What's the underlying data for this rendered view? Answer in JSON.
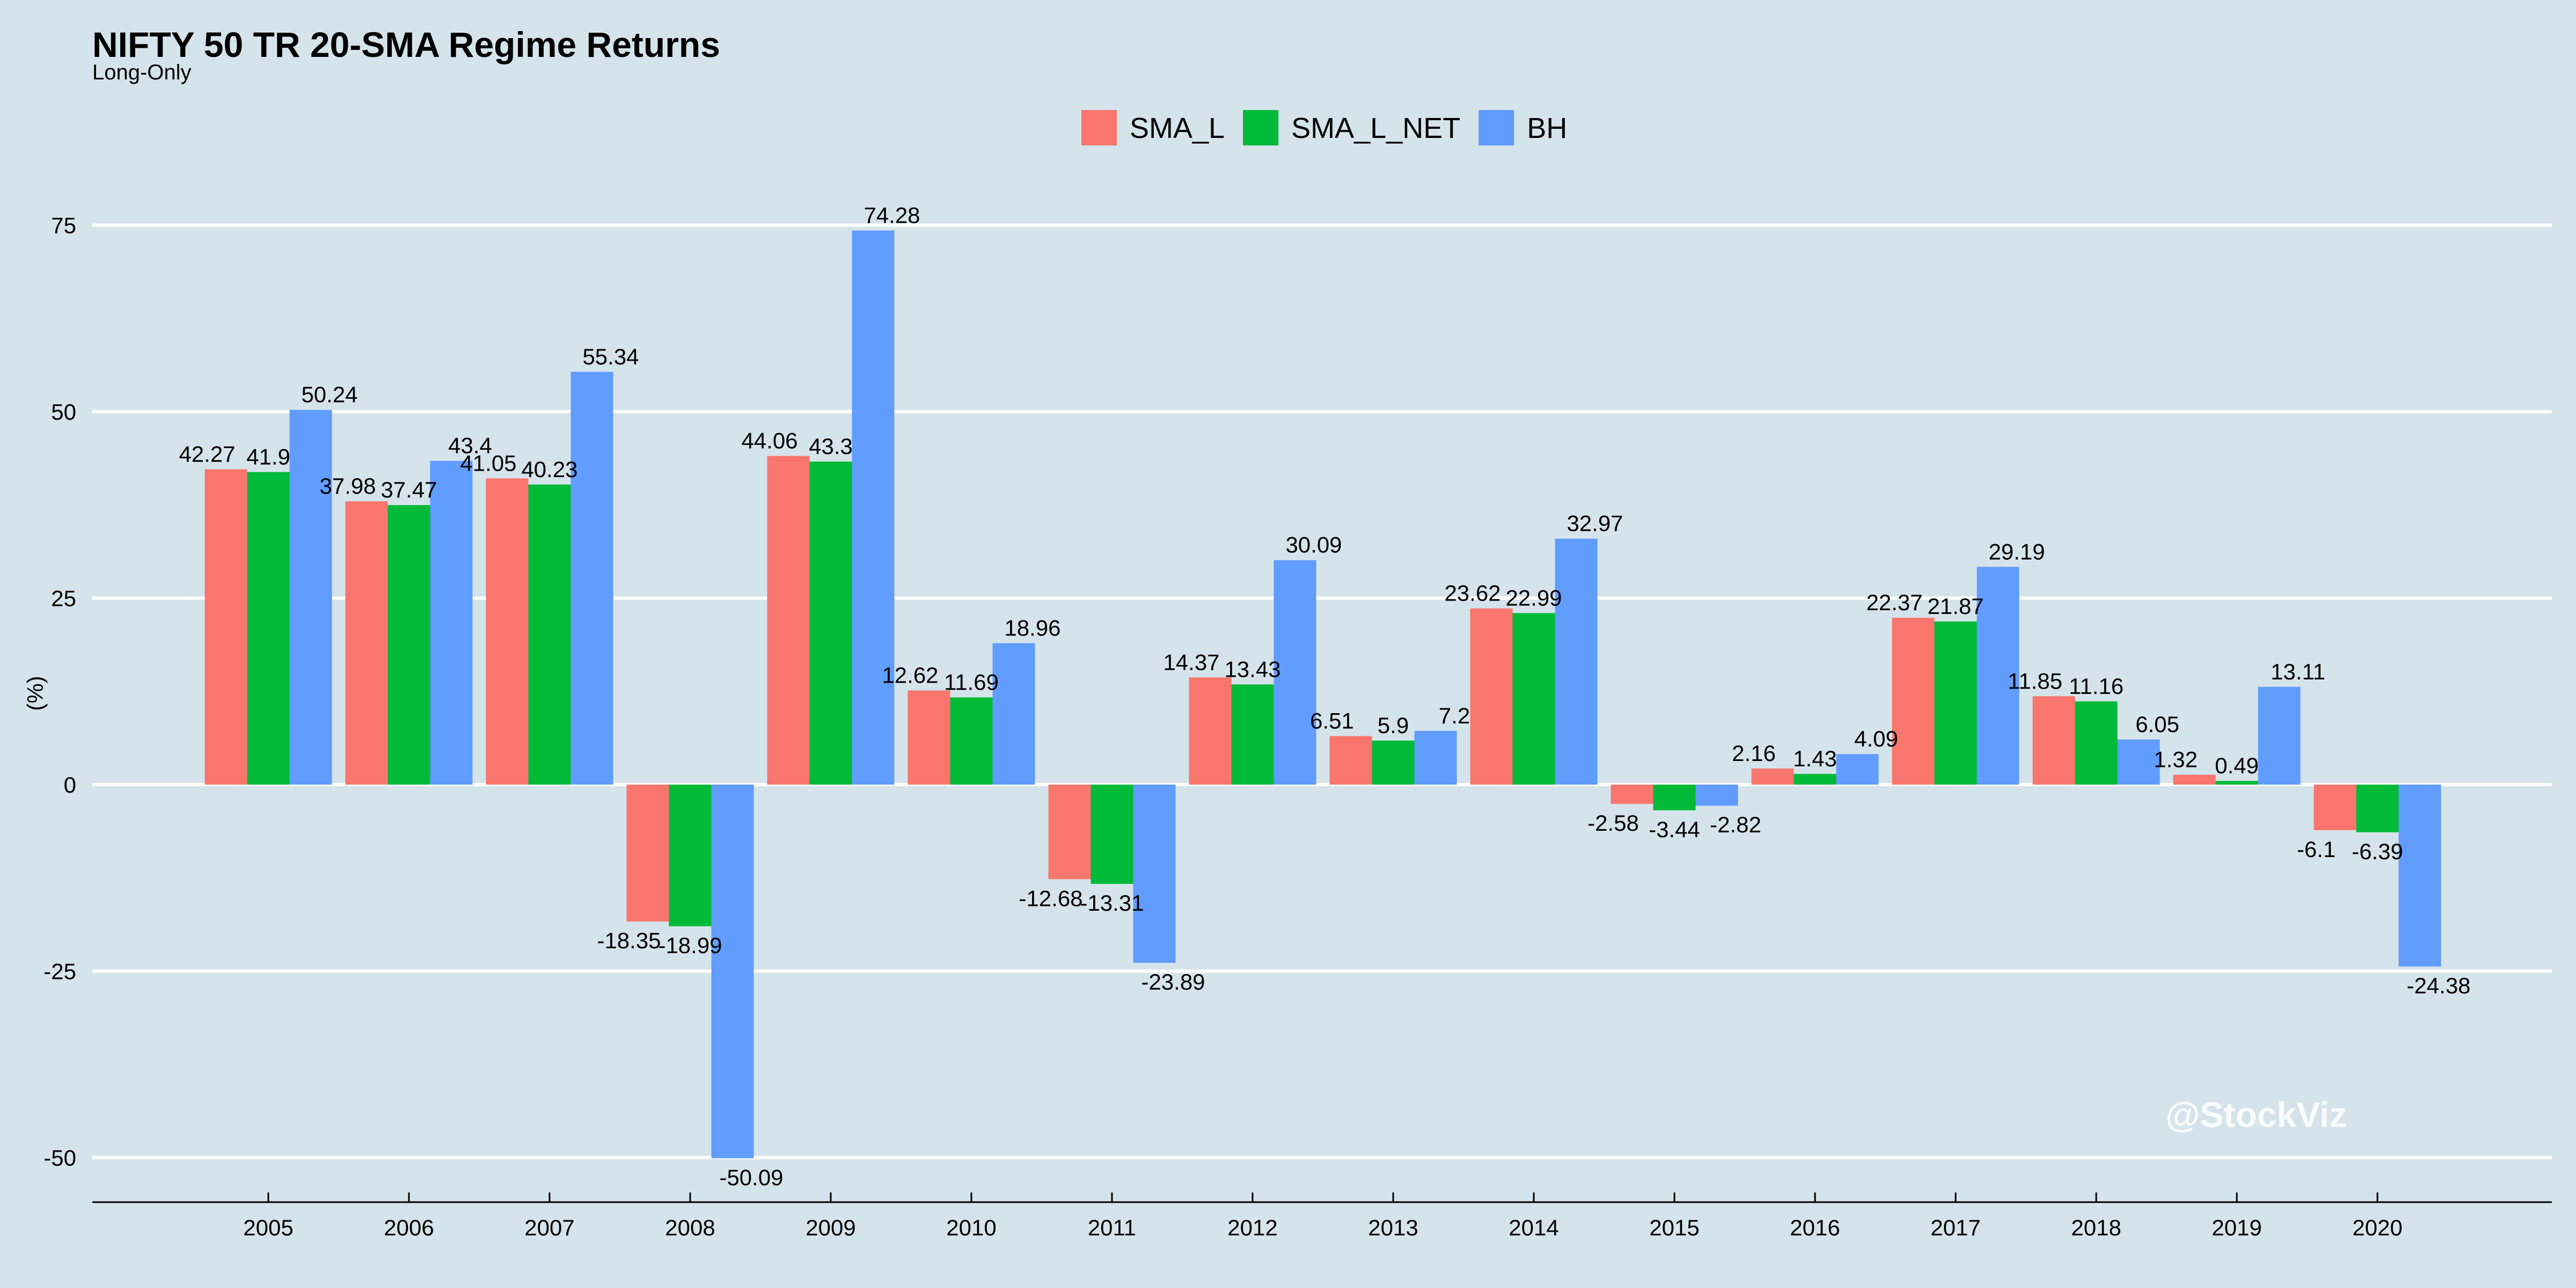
{
  "chart_data": {
    "type": "bar",
    "title": "NIFTY 50 TR 20-SMA Regime Returns",
    "subtitle": "Long-Only",
    "ylabel": "(%)",
    "xlabel": "",
    "ylim": [
      -55,
      80
    ],
    "yticks": [
      -50,
      -25,
      0,
      25,
      50,
      75
    ],
    "grid": true,
    "legend_position": "top-center",
    "watermark": "@StockViz",
    "categories": [
      "2005",
      "2006",
      "2007",
      "2008",
      "2009",
      "2010",
      "2011",
      "2012",
      "2013",
      "2014",
      "2015",
      "2016",
      "2017",
      "2018",
      "2019",
      "2020"
    ],
    "series": [
      {
        "name": "SMA_L",
        "color": "#f8766d",
        "values": [
          42.27,
          37.98,
          41.05,
          -18.35,
          44.06,
          12.62,
          -12.68,
          14.37,
          6.51,
          23.62,
          -2.58,
          2.16,
          22.37,
          11.85,
          1.32,
          -6.1
        ]
      },
      {
        "name": "SMA_L_NET",
        "color": "#00ba38",
        "values": [
          41.9,
          37.47,
          40.23,
          -18.99,
          43.3,
          11.69,
          -13.31,
          13.43,
          5.9,
          22.99,
          -3.44,
          1.43,
          21.87,
          11.16,
          0.49,
          -6.39
        ]
      },
      {
        "name": "BH",
        "color": "#619cff",
        "values": [
          50.24,
          43.4,
          55.34,
          -50.09,
          74.28,
          18.96,
          -23.89,
          30.09,
          7.2,
          32.97,
          -2.82,
          4.09,
          29.19,
          6.05,
          13.11,
          -24.38
        ]
      }
    ]
  }
}
